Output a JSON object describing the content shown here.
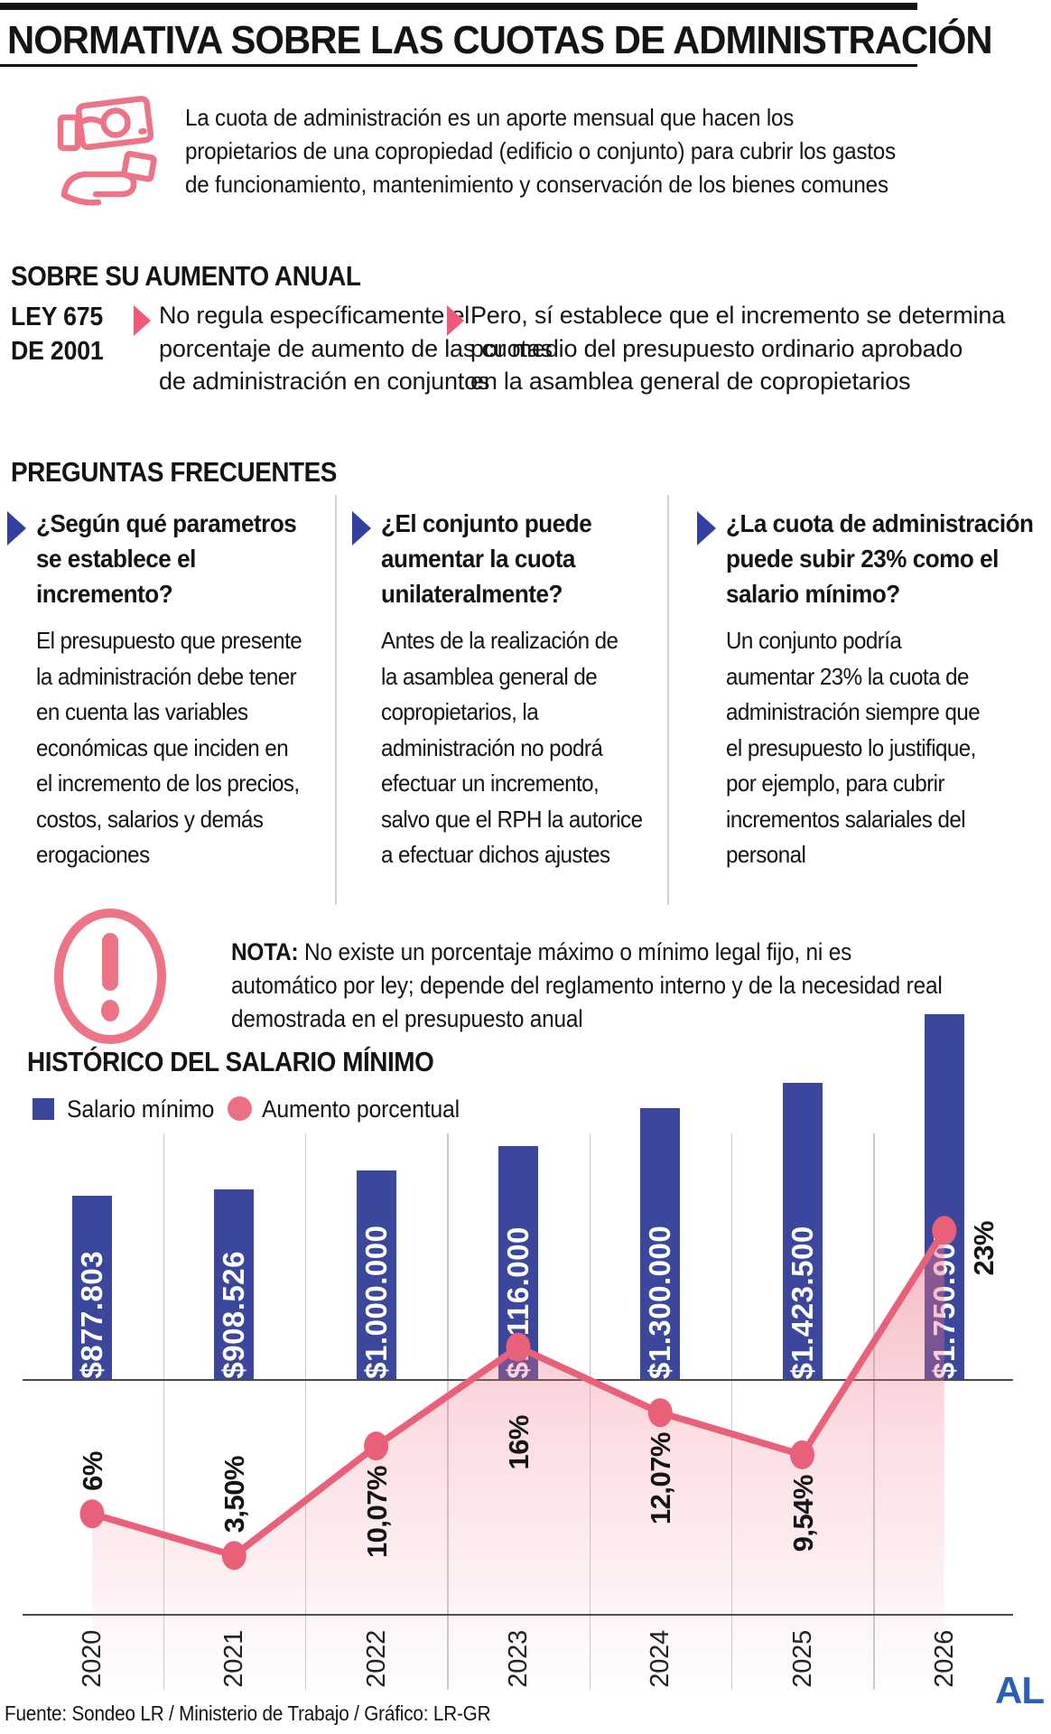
{
  "header": {
    "title": "NORMATIVA SOBRE LAS CUOTAS DE ADMINISTRACIÓN",
    "logo": "AL"
  },
  "intro": {
    "icon": "hand-receiving-money-icon",
    "lines": [
      "La cuota de administración es un aporte mensual que hacen los",
      "propietarios de una copropiedad (edificio o conjunto) para cubrir los gastos",
      "de funcionamiento, mantenimiento y conservación de los bienes comunes"
    ]
  },
  "annual": {
    "heading": "SOBRE SU AUMENTO ANUAL",
    "law_line1": "LEY 675",
    "law_line2": "DE 2001",
    "bullets": [
      {
        "lines": [
          "No regula específicamente el",
          "porcentaje de aumento de las cuotas",
          "de administración en conjuntos"
        ]
      },
      {
        "lines": [
          "Pero, sí establece que el incremento se determina",
          "por medio del presupuesto ordinario aprobado",
          "en la asamblea general de copropietarios"
        ]
      }
    ]
  },
  "faq": {
    "heading": "PREGUNTAS FRECUENTES",
    "items": [
      {
        "question_lines": [
          "¿Según qué parametros",
          "se establece el",
          "incremento?"
        ],
        "answer_lines": [
          "El presupuesto que presente",
          "la administración debe tener",
          "en cuenta las variables",
          "económicas que inciden en",
          "el incremento de los precios,",
          "costos, salarios y demás",
          "erogaciones"
        ]
      },
      {
        "question_lines": [
          "¿El conjunto puede",
          "aumentar la cuota",
          "unilateralmente?"
        ],
        "answer_lines": [
          "Antes de la realización de",
          "la asamblea general de",
          "copropietarios, la",
          "administración no podrá",
          "efectuar un incremento,",
          "salvo que el RPH la autorice",
          "a efectuar dichos ajustes"
        ]
      },
      {
        "question_lines": [
          "¿La cuota de administración",
          "puede subir 23% como el",
          "salario mínimo?"
        ],
        "answer_lines": [
          "Un conjunto podría",
          "aumentar 23% la cuota de",
          "administración siempre que",
          "el presupuesto lo justifique,",
          "por ejemplo, para cubrir",
          "incrementos salariales del",
          "personal"
        ]
      }
    ]
  },
  "note": {
    "icon": "exclamation-icon",
    "label": "NOTA:",
    "lines": [
      "No existe un porcentaje máximo o mínimo legal fijo, ni es",
      "automático por ley; depende del reglamento interno y de la necesidad real",
      "demostrada en el presupuesto anual"
    ]
  },
  "chart": {
    "heading": "HISTÓRICO DEL SALARIO MÍNIMO",
    "legend": [
      {
        "label": "Salario mínimo",
        "color": "#3B479D",
        "shape": "square"
      },
      {
        "label": "Aumento porcentual",
        "color": "#ED6F85",
        "shape": "circle"
      }
    ]
  },
  "chart_data": {
    "type": "bar+line",
    "title": "HISTÓRICO DEL SALARIO MÍNIMO",
    "categories": [
      "2020",
      "2021",
      "2022",
      "2023",
      "2024",
      "2025",
      "2026"
    ],
    "series": [
      {
        "name": "Salario mínimo",
        "type": "bar",
        "color": "#3B479D",
        "values": [
          877803,
          908526,
          1000000,
          1116000,
          1300000,
          1423500,
          1750905
        ],
        "labels": [
          "$877.803",
          "$908.526",
          "$1.000.000",
          "$1.116.000",
          "$1.300.000",
          "$1.423.500",
          "$1.750.905"
        ]
      },
      {
        "name": "Aumento porcentual",
        "type": "line",
        "color": "#E8607A",
        "values": [
          6,
          3.5,
          10.07,
          16,
          12.07,
          9.54,
          23
        ],
        "labels": [
          "6%",
          "3,50%",
          "10,07%",
          "16%",
          "12,07%",
          "9,54%",
          "23%"
        ],
        "label_placement": [
          "above",
          "above",
          "below",
          "below",
          "below",
          "below",
          "right"
        ]
      }
    ],
    "legend_position": "top-left",
    "grid": "vertical-gridlines",
    "ylim_bar": [
      0,
      1750905
    ],
    "ylim_line_pct": [
      0,
      28
    ]
  },
  "footer": {
    "source": "Fuente: Sondeo LR / Ministerio de Trabajo / Gráfico: LR-GR"
  },
  "colors": {
    "bar_blue": "#3B479D",
    "line_pink": "#E8607A",
    "area_pink": "#ED6F85",
    "arrow_blue": "#3240A0",
    "arrow_pink": "#EE5A78",
    "icon_pink": "#ED7386",
    "logo_blue": "#2A5FB8",
    "text": "#141414"
  }
}
